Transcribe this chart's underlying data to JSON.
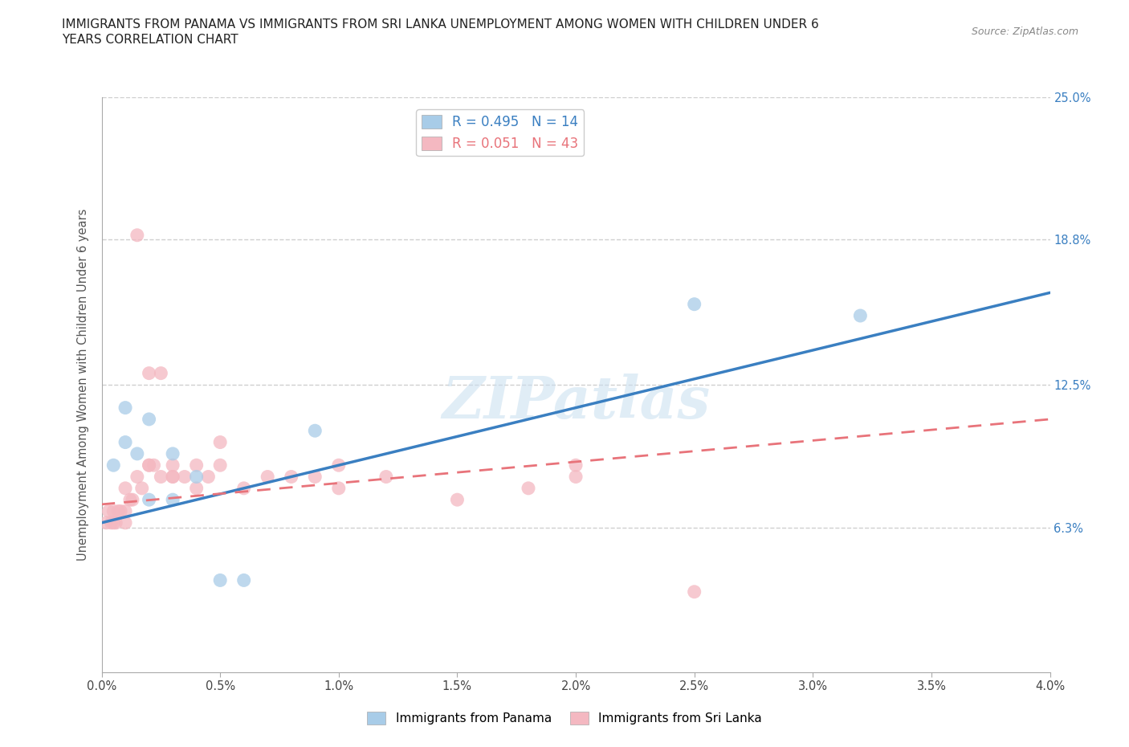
{
  "title_line1": "IMMIGRANTS FROM PANAMA VS IMMIGRANTS FROM SRI LANKA UNEMPLOYMENT AMONG WOMEN WITH CHILDREN UNDER 6",
  "title_line2": "YEARS CORRELATION CHART",
  "source": "Source: ZipAtlas.com",
  "ylabel": "Unemployment Among Women with Children Under 6 years",
  "xlim": [
    0.0,
    0.04
  ],
  "ylim": [
    0.0,
    0.25
  ],
  "xtick_vals": [
    0.0,
    0.005,
    0.01,
    0.015,
    0.02,
    0.025,
    0.03,
    0.035,
    0.04
  ],
  "xtick_labels": [
    "0.0%",
    "0.5%",
    "1.0%",
    "1.5%",
    "2.0%",
    "2.5%",
    "3.0%",
    "3.5%",
    "4.0%"
  ],
  "ytick_vals": [
    0.063,
    0.125,
    0.188,
    0.25
  ],
  "ytick_labels": [
    "6.3%",
    "12.5%",
    "18.8%",
    "25.0%"
  ],
  "panama_x": [
    0.0005,
    0.001,
    0.001,
    0.0015,
    0.002,
    0.002,
    0.003,
    0.003,
    0.004,
    0.005,
    0.006,
    0.009,
    0.025,
    0.032
  ],
  "panama_y": [
    0.09,
    0.1,
    0.115,
    0.095,
    0.075,
    0.11,
    0.075,
    0.095,
    0.085,
    0.04,
    0.04,
    0.105,
    0.16,
    0.155
  ],
  "sri_lanka_x": [
    0.0002,
    0.0003,
    0.0004,
    0.0005,
    0.0005,
    0.0006,
    0.0007,
    0.0008,
    0.001,
    0.001,
    0.001,
    0.0012,
    0.0013,
    0.0015,
    0.0015,
    0.0017,
    0.002,
    0.002,
    0.002,
    0.0022,
    0.0025,
    0.0025,
    0.003,
    0.003,
    0.003,
    0.0035,
    0.004,
    0.004,
    0.0045,
    0.005,
    0.005,
    0.006,
    0.007,
    0.008,
    0.009,
    0.01,
    0.01,
    0.012,
    0.015,
    0.018,
    0.02,
    0.02,
    0.025
  ],
  "sri_lanka_y": [
    0.065,
    0.07,
    0.065,
    0.065,
    0.07,
    0.065,
    0.07,
    0.07,
    0.065,
    0.07,
    0.08,
    0.075,
    0.075,
    0.085,
    0.19,
    0.08,
    0.09,
    0.13,
    0.09,
    0.09,
    0.085,
    0.13,
    0.085,
    0.09,
    0.085,
    0.085,
    0.09,
    0.08,
    0.085,
    0.09,
    0.1,
    0.08,
    0.085,
    0.085,
    0.085,
    0.09,
    0.08,
    0.085,
    0.075,
    0.08,
    0.09,
    0.085,
    0.035
  ],
  "panama_line_x0": 0.0,
  "panama_line_y0": 0.065,
  "panama_line_x1": 0.04,
  "panama_line_y1": 0.165,
  "sri_lanka_line_x0": 0.0,
  "sri_lanka_line_y0": 0.073,
  "sri_lanka_line_x1": 0.04,
  "sri_lanka_line_y1": 0.11,
  "panama_R": 0.495,
  "panama_N": 14,
  "sri_lanka_R": 0.051,
  "sri_lanka_N": 43,
  "panama_color": "#a8cce8",
  "sri_lanka_color": "#f4b8c1",
  "panama_line_color": "#3a7fc1",
  "sri_lanka_line_color": "#e8737a",
  "watermark_text": "ZIPatlas",
  "background_color": "#ffffff",
  "grid_color": "#d0d0d0"
}
